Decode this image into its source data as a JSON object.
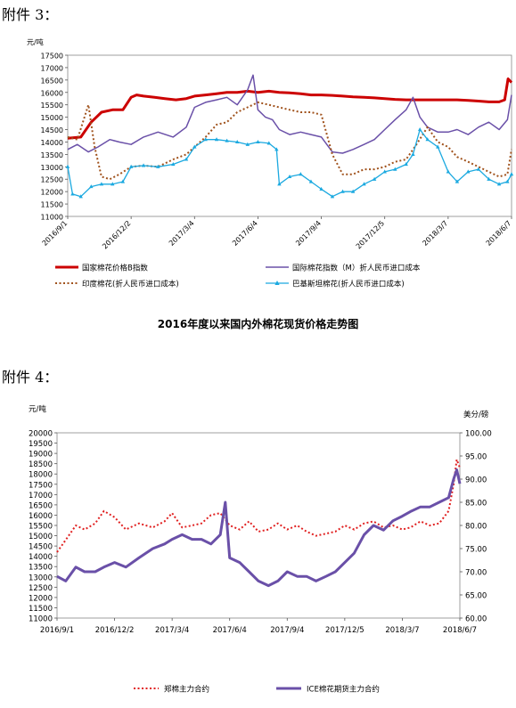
{
  "heading1": "附件 3：",
  "heading2": "附件 4：",
  "chart_data": [
    {
      "type": "line",
      "title": "2016年度以来国内外棉花现货价格走势图",
      "ylabel": "元/吨",
      "ylim": [
        11000,
        17500
      ],
      "yticks": [
        11000,
        11500,
        12000,
        12500,
        13000,
        13500,
        14000,
        14500,
        15000,
        15500,
        16000,
        16500,
        17000,
        17500
      ],
      "x_ticks": [
        "2016/9/1",
        "2016/12/2",
        "2017/3/4",
        "2017/6/4",
        "2017/9/4",
        "2017/12/5",
        "2018/3/7",
        "2018/6/7"
      ],
      "x_range": [
        "2016-09-01",
        "2018-06-07"
      ],
      "series": [
        {
          "name": "国家棉花价格B指数",
          "color": "#cc0000",
          "style": "solid",
          "width": 3,
          "x": [
            "2016-09-01",
            "2016-09-20",
            "2016-10-05",
            "2016-10-20",
            "2016-11-05",
            "2016-11-20",
            "2016-12-02",
            "2016-12-10",
            "2016-12-20",
            "2017-01-05",
            "2017-01-20",
            "2017-02-05",
            "2017-02-20",
            "2017-03-04",
            "2017-03-20",
            "2017-04-05",
            "2017-04-20",
            "2017-05-05",
            "2017-05-20",
            "2017-06-04",
            "2017-06-20",
            "2017-07-05",
            "2017-07-20",
            "2017-08-05",
            "2017-08-20",
            "2017-09-04",
            "2017-09-20",
            "2017-10-05",
            "2017-10-20",
            "2017-11-05",
            "2017-11-20",
            "2017-12-05",
            "2017-12-20",
            "2018-01-05",
            "2018-01-20",
            "2018-02-05",
            "2018-02-20",
            "2018-03-07",
            "2018-03-20",
            "2018-04-05",
            "2018-04-20",
            "2018-05-05",
            "2018-05-20",
            "2018-05-28",
            "2018-06-02",
            "2018-06-07"
          ],
          "y": [
            14150,
            14200,
            14800,
            15200,
            15300,
            15300,
            15800,
            15900,
            15850,
            15800,
            15750,
            15700,
            15750,
            15850,
            15900,
            15950,
            16000,
            16000,
            16050,
            16000,
            16050,
            16000,
            15980,
            15950,
            15900,
            15900,
            15880,
            15850,
            15820,
            15800,
            15780,
            15750,
            15720,
            15700,
            15700,
            15700,
            15700,
            15700,
            15700,
            15680,
            15650,
            15620,
            15620,
            15700,
            16550,
            16400
          ]
        },
        {
          "name": "国际棉花指数（M）折人民币进口成本",
          "color": "#6a50a8",
          "style": "solid",
          "width": 1.5,
          "x": [
            "2016-09-01",
            "2016-09-15",
            "2016-10-01",
            "2016-10-15",
            "2016-11-01",
            "2016-11-15",
            "2016-12-02",
            "2016-12-20",
            "2017-01-10",
            "2017-02-01",
            "2017-02-20",
            "2017-03-04",
            "2017-03-20",
            "2017-04-05",
            "2017-04-20",
            "2017-05-05",
            "2017-05-20",
            "2017-05-28",
            "2017-06-04",
            "2017-06-15",
            "2017-06-25",
            "2017-07-05",
            "2017-07-20",
            "2017-08-05",
            "2017-08-20",
            "2017-09-04",
            "2017-09-20",
            "2017-10-05",
            "2017-10-20",
            "2017-11-05",
            "2017-11-20",
            "2017-12-05",
            "2017-12-20",
            "2018-01-05",
            "2018-01-15",
            "2018-01-25",
            "2018-02-05",
            "2018-02-20",
            "2018-03-07",
            "2018-03-20",
            "2018-04-05",
            "2018-04-20",
            "2018-05-05",
            "2018-05-20",
            "2018-06-01",
            "2018-06-07"
          ],
          "y": [
            13700,
            13900,
            13600,
            13800,
            14100,
            14000,
            13900,
            14200,
            14400,
            14200,
            14600,
            15400,
            15600,
            15700,
            15800,
            15500,
            16100,
            16700,
            15300,
            15000,
            14900,
            14500,
            14300,
            14400,
            14300,
            14200,
            13600,
            13550,
            13700,
            13900,
            14100,
            14500,
            14900,
            15300,
            15800,
            15000,
            14600,
            14400,
            14400,
            14500,
            14300,
            14600,
            14800,
            14500,
            14900,
            15900
          ]
        },
        {
          "name": "印度棉花(折人民币进口成本)",
          "color": "#a0521c",
          "style": "dotted",
          "width": 2,
          "x": [
            "2016-09-01",
            "2016-09-15",
            "2016-10-01",
            "2016-10-10",
            "2016-10-20",
            "2016-11-01",
            "2016-11-15",
            "2016-12-02",
            "2016-12-20",
            "2017-01-10",
            "2017-02-01",
            "2017-02-20",
            "2017-03-04",
            "2017-03-20",
            "2017-04-05",
            "2017-04-20",
            "2017-05-05",
            "2017-05-20",
            "2017-06-04",
            "2017-06-20",
            "2017-07-05",
            "2017-07-20",
            "2017-08-05",
            "2017-08-20",
            "2017-09-04",
            "2017-09-20",
            "2017-10-05",
            "2017-10-20",
            "2017-11-05",
            "2017-11-20",
            "2017-12-05",
            "2017-12-20",
            "2018-01-05",
            "2018-01-20",
            "2018-02-05",
            "2018-02-20",
            "2018-03-07",
            "2018-03-20",
            "2018-04-05",
            "2018-04-20",
            "2018-05-05",
            "2018-05-20",
            "2018-06-01",
            "2018-06-07"
          ],
          "y": [
            14200,
            14100,
            15500,
            13800,
            12600,
            12500,
            12700,
            13000,
            13050,
            13000,
            13300,
            13500,
            13800,
            14200,
            14700,
            14800,
            15200,
            15400,
            15600,
            15500,
            15400,
            15300,
            15200,
            15200,
            15100,
            13500,
            12700,
            12700,
            12900,
            12900,
            13000,
            13200,
            13300,
            13900,
            14600,
            14000,
            13800,
            13400,
            13200,
            13000,
            12800,
            12600,
            12700,
            13700
          ]
        },
        {
          "name": "巴基斯坦棉花(折人民币进口成本)",
          "color": "#1ba9e0",
          "style": "solid-marker",
          "width": 1.3,
          "x": [
            "2016-09-01",
            "2016-09-08",
            "2016-09-20",
            "2016-10-05",
            "2016-10-20",
            "2016-11-05",
            "2016-11-20",
            "2016-12-02",
            "2016-12-20",
            "2017-01-10",
            "2017-02-01",
            "2017-02-20",
            "2017-03-04",
            "2017-03-20",
            "2017-04-05",
            "2017-04-20",
            "2017-05-05",
            "2017-05-20",
            "2017-06-04",
            "2017-06-20",
            "2017-07-01",
            "2017-07-05",
            "2017-07-20",
            "2017-08-05",
            "2017-08-20",
            "2017-09-04",
            "2017-09-20",
            "2017-10-05",
            "2017-10-20",
            "2017-11-05",
            "2017-11-20",
            "2017-12-05",
            "2017-12-20",
            "2018-01-05",
            "2018-01-15",
            "2018-01-25",
            "2018-02-05",
            "2018-02-20",
            "2018-03-07",
            "2018-03-20",
            "2018-04-05",
            "2018-04-20",
            "2018-05-05",
            "2018-05-20",
            "2018-06-01",
            "2018-06-07"
          ],
          "y": [
            13000,
            11900,
            11800,
            12200,
            12300,
            12300,
            12400,
            13000,
            13050,
            13000,
            13100,
            13300,
            13800,
            14100,
            14100,
            14050,
            14000,
            13900,
            14000,
            13950,
            13700,
            12300,
            12600,
            12700,
            12400,
            12100,
            11800,
            12000,
            12000,
            12300,
            12500,
            12800,
            12900,
            13100,
            13500,
            14500,
            14100,
            13800,
            12800,
            12400,
            12800,
            12900,
            12500,
            12300,
            12400,
            12700
          ]
        }
      ]
    },
    {
      "type": "line",
      "ylabel": "元/吨",
      "y2label": "美分/磅",
      "ylim": [
        11000,
        20000
      ],
      "y2lim": [
        60,
        100
      ],
      "yticks": [
        11000,
        11500,
        12000,
        12500,
        13000,
        13500,
        14000,
        14500,
        15000,
        15500,
        16000,
        16500,
        17000,
        17500,
        18000,
        18500,
        19000,
        19500,
        20000
      ],
      "y2ticks": [
        "60.00",
        "65.00",
        "70.00",
        "75.00",
        "80.00",
        "85.00",
        "90.00",
        "95.00",
        "100.00"
      ],
      "x_ticks": [
        "2016/9/1",
        "2016/12/2",
        "2017/3/4",
        "2017/6/4",
        "2017/9/4",
        "2017/12/5",
        "2018/3/7",
        "2018/6/7"
      ],
      "x_range": [
        "2016-09-01",
        "2018-06-07"
      ],
      "series": [
        {
          "name": "郑棉主力合约",
          "color": "#e02020",
          "style": "dotted",
          "width": 2,
          "axis": "left",
          "x": [
            "2016-09-01",
            "2016-09-15",
            "2016-10-01",
            "2016-10-15",
            "2016-11-01",
            "2016-11-15",
            "2016-12-02",
            "2016-12-20",
            "2017-01-10",
            "2017-02-01",
            "2017-02-20",
            "2017-03-04",
            "2017-03-20",
            "2017-04-05",
            "2017-04-20",
            "2017-05-05",
            "2017-05-20",
            "2017-06-04",
            "2017-06-20",
            "2017-07-05",
            "2017-07-20",
            "2017-08-05",
            "2017-08-20",
            "2017-09-04",
            "2017-09-20",
            "2017-10-05",
            "2017-10-20",
            "2017-11-05",
            "2017-11-20",
            "2017-12-05",
            "2017-12-20",
            "2018-01-05",
            "2018-01-20",
            "2018-02-05",
            "2018-02-20",
            "2018-03-07",
            "2018-03-20",
            "2018-04-05",
            "2018-04-20",
            "2018-05-05",
            "2018-05-20",
            "2018-05-28",
            "2018-06-02",
            "2018-06-07"
          ],
          "y": [
            14200,
            14800,
            15500,
            15300,
            15600,
            16200,
            15900,
            15300,
            15600,
            15400,
            15700,
            16100,
            15400,
            15500,
            15600,
            16000,
            16100,
            15500,
            15300,
            15700,
            15200,
            15300,
            15600,
            15300,
            15500,
            15200,
            15000,
            15100,
            15200,
            15500,
            15300,
            15600,
            15700,
            15400,
            15500,
            15300,
            15400,
            15700,
            15500,
            15600,
            16200,
            17500,
            18700,
            18300
          ]
        },
        {
          "name": "ICE棉花期货主力合约",
          "color": "#6a50a8",
          "style": "solid",
          "width": 3,
          "axis": "right",
          "x": [
            "2016-09-01",
            "2016-09-15",
            "2016-10-01",
            "2016-10-15",
            "2016-11-01",
            "2016-11-15",
            "2016-12-02",
            "2016-12-20",
            "2017-01-10",
            "2017-02-01",
            "2017-02-20",
            "2017-03-04",
            "2017-03-20",
            "2017-04-05",
            "2017-04-20",
            "2017-05-05",
            "2017-05-20",
            "2017-05-28",
            "2017-06-04",
            "2017-06-20",
            "2017-07-05",
            "2017-07-20",
            "2017-08-05",
            "2017-08-20",
            "2017-09-04",
            "2017-09-20",
            "2017-10-05",
            "2017-10-20",
            "2017-11-05",
            "2017-11-20",
            "2017-12-05",
            "2017-12-20",
            "2018-01-05",
            "2018-01-20",
            "2018-02-05",
            "2018-02-20",
            "2018-03-07",
            "2018-03-20",
            "2018-04-05",
            "2018-04-20",
            "2018-05-05",
            "2018-05-20",
            "2018-05-28",
            "2018-06-02",
            "2018-06-07"
          ],
          "y": [
            69,
            68,
            71,
            70,
            70,
            71,
            72,
            71,
            73,
            75,
            76,
            77,
            78,
            77,
            77,
            76,
            78,
            85,
            73,
            72,
            70,
            68,
            67,
            68,
            70,
            69,
            69,
            68,
            69,
            70,
            72,
            74,
            78,
            80,
            79,
            81,
            82,
            83,
            84,
            84,
            85,
            86,
            90,
            92,
            89
          ]
        }
      ]
    }
  ]
}
